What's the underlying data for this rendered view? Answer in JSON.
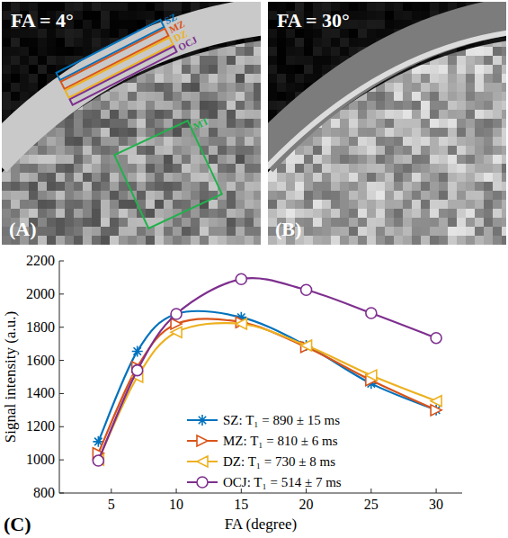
{
  "images": [
    {
      "label": "(A)",
      "title": "FA = 4°",
      "rois": [
        {
          "name": "SZ",
          "color": "#0072bd"
        },
        {
          "name": "MZ",
          "color": "#d95319"
        },
        {
          "name": "DZ",
          "color": "#edb120"
        },
        {
          "name": "OCJ",
          "color": "#7e2f8e"
        },
        {
          "name": "MT",
          "color": "#22b14c"
        }
      ]
    },
    {
      "label": "(B)",
      "title": "FA = 30°",
      "rois": []
    }
  ],
  "chart_data": {
    "type": "line",
    "panel_label": "(C)",
    "x_label": "FA (degree)",
    "y_label": "Signal intensity (a.u.)",
    "x": [
      4,
      7,
      10,
      15,
      20,
      25,
      30
    ],
    "xlim": [
      1,
      32
    ],
    "xticks": [
      5,
      10,
      15,
      20,
      25,
      30
    ],
    "ylim": [
      800,
      2200
    ],
    "yticks": [
      800,
      1000,
      1200,
      1400,
      1600,
      1800,
      2000,
      2200
    ],
    "grid": false,
    "legend": "lower center",
    "series": [
      {
        "name": "SZ: T₁ = 890 ± 15 ms",
        "color": "#0072bd",
        "marker": "asterisk",
        "values": [
          1110,
          1655,
          1880,
          1860,
          1690,
          1460,
          1300
        ]
      },
      {
        "name": "MZ: T₁ = 810 ± 6 ms",
        "color": "#d95319",
        "marker": "triangle-right",
        "values": [
          1040,
          1560,
          1820,
          1830,
          1680,
          1480,
          1300
        ]
      },
      {
        "name": "DZ: T₁ = 730 ± 8 ms",
        "color": "#edb120",
        "marker": "triangle-left",
        "values": [
          1000,
          1500,
          1770,
          1820,
          1690,
          1510,
          1355
        ]
      },
      {
        "name": "OCJ: T₁ = 514 ± 7 ms",
        "color": "#7e2f8e",
        "marker": "circle",
        "values": [
          995,
          1540,
          1880,
          2090,
          2025,
          1885,
          1735
        ]
      }
    ]
  }
}
